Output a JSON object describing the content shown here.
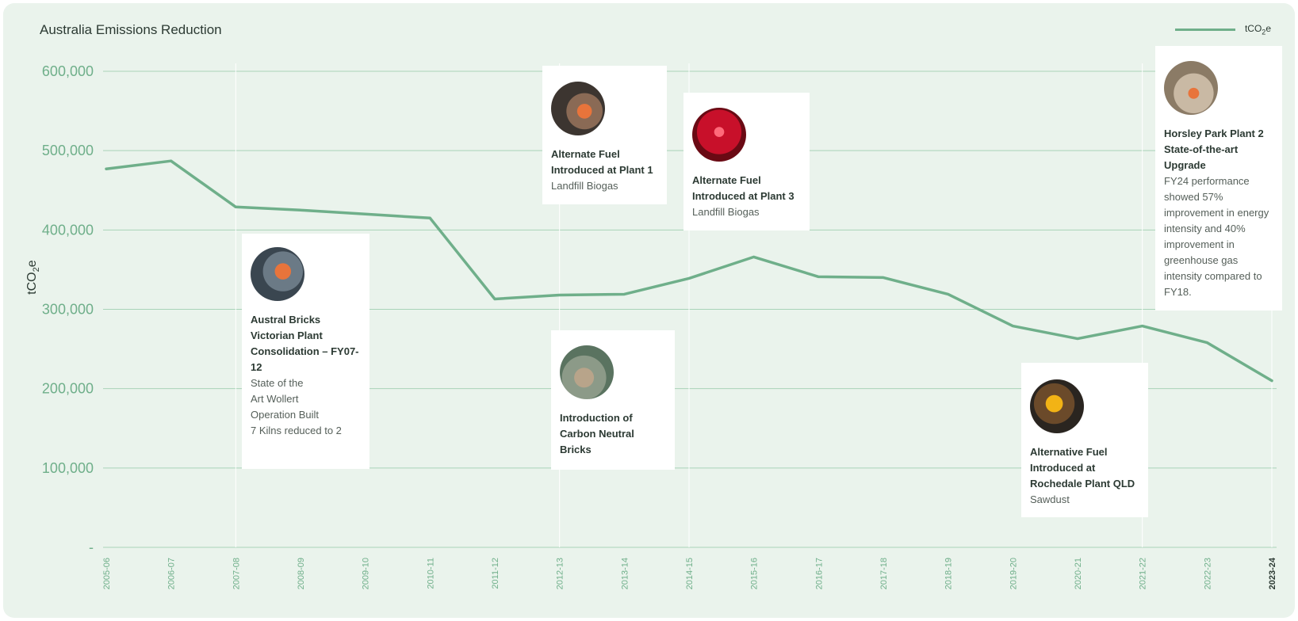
{
  "chart_data": {
    "type": "line",
    "title": "Australia Emissions Reduction",
    "ylabel": "tCO2e",
    "ylabel_main": "tCO",
    "ylabel_sub": "2",
    "ylabel_end": "e",
    "legend": {
      "placement": "top-right",
      "label_main": "tCO",
      "label_sub": "2",
      "label_end": "e"
    },
    "ylim": [
      0,
      600000
    ],
    "y_ticks": [
      {
        "value": 600000,
        "label": "600,000"
      },
      {
        "value": 500000,
        "label": "500,000"
      },
      {
        "value": 400000,
        "label": "400,000"
      },
      {
        "value": 300000,
        "label": "300,000"
      },
      {
        "value": 200000,
        "label": "200,000"
      },
      {
        "value": 100000,
        "label": "100,000"
      },
      {
        "value": 0,
        "label": "-"
      }
    ],
    "grid": true,
    "categories": [
      "2005-06",
      "2006-07",
      "2007-08",
      "2008-09",
      "2009-10",
      "2010-11",
      "2011-12",
      "2012-13",
      "2013-14",
      "2014-15",
      "2015-16",
      "2016-17",
      "2017-18",
      "2018-19",
      "2019-20",
      "2020-21",
      "2021-22",
      "2022-23",
      "2023-24"
    ],
    "series": [
      {
        "name": "tCO2e",
        "color": "#6faf8a",
        "values": [
          477000,
          487000,
          429000,
          425000,
          420000,
          415000,
          313000,
          318000,
          319000,
          339000,
          366000,
          341000,
          340000,
          319000,
          279000,
          263000,
          279000,
          258000,
          210000
        ]
      }
    ],
    "annotations": [
      {
        "title": "Austral Bricks Victorian Plant Consolidation – FY07-12",
        "description": "State of the\nArt Wollert\nOperation Built\n7 Kilns reduced to 2",
        "category": "2007-08",
        "image": "factory-worker-photo"
      },
      {
        "title": "Alternate Fuel Introduced at Plant 1",
        "description": "Landfill Biogas",
        "category": "2012-13",
        "image": "plant-worker-photo"
      },
      {
        "title": "Introduction of Carbon Neutral Bricks",
        "description": "",
        "category": "2012-13",
        "image": "bricks-photo"
      },
      {
        "title": "Alternate Fuel Introduced at Plant 3",
        "description": "Landfill Biogas",
        "category": "2014-15",
        "image": "kiln-fire-photo"
      },
      {
        "title": "Alternative Fuel Introduced at Rochedale Plant QLD",
        "description": "Sawdust",
        "category": "2021-22",
        "image": "robot-arm-photo"
      },
      {
        "title": "Horsley Park Plant 2 State-of-the-art Upgrade",
        "description": "FY24 performance showed 57% improvement in energy intensity and 40% improvement in greenhouse gas intensity compared to FY18.",
        "category": "2023-24",
        "image": "plant-interior-photo"
      }
    ]
  }
}
